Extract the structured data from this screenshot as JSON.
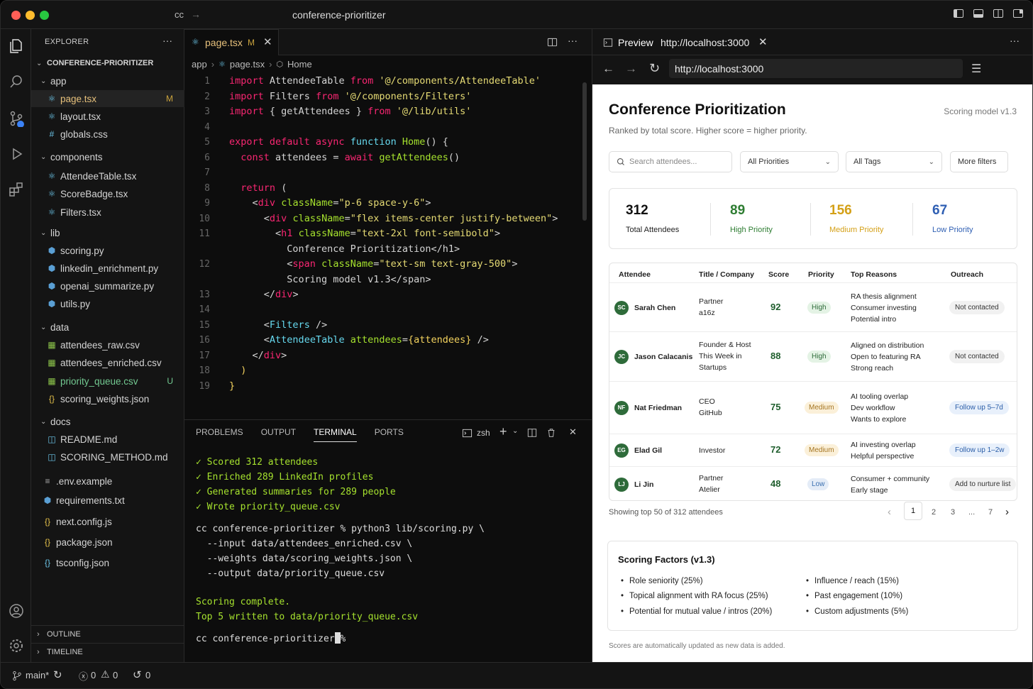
{
  "titlebar": {
    "left": "cc",
    "arrow": "→",
    "title": "conference-prioritizer"
  },
  "explorer": {
    "header": "EXPLORER",
    "more": "···",
    "root": "CONFERENCE-PRIORITIZER",
    "items": [
      {
        "label": "app",
        "kind": "folder"
      },
      {
        "label": "page.tsx",
        "kind": "react",
        "badge": "M"
      },
      {
        "label": "layout.tsx",
        "kind": "react"
      },
      {
        "label": "globals.css",
        "kind": "css"
      },
      {
        "label": "components",
        "kind": "folder"
      },
      {
        "label": "AttendeeTable.tsx",
        "kind": "react"
      },
      {
        "label": "ScoreBadge.tsx",
        "kind": "react"
      },
      {
        "label": "Filters.tsx",
        "kind": "react"
      },
      {
        "label": "lib",
        "kind": "folder"
      },
      {
        "label": "scoring.py",
        "kind": "python"
      },
      {
        "label": "linkedin_enrichment.py",
        "kind": "python"
      },
      {
        "label": "openai_summarize.py",
        "kind": "python"
      },
      {
        "label": "utils.py",
        "kind": "python"
      },
      {
        "label": "data",
        "kind": "folder"
      },
      {
        "label": "attendees_raw.csv",
        "kind": "csv"
      },
      {
        "label": "attendees_enriched.csv",
        "kind": "csv"
      },
      {
        "label": "priority_queue.csv",
        "kind": "csv",
        "badge": "U"
      },
      {
        "label": "scoring_weights.json",
        "kind": "json"
      },
      {
        "label": "docs",
        "kind": "folder"
      },
      {
        "label": "README.md",
        "kind": "md"
      },
      {
        "label": "SCORING_METHOD.md",
        "kind": "md"
      },
      {
        "label": ".env.example",
        "kind": "env"
      },
      {
        "label": "requirements.txt",
        "kind": "python"
      },
      {
        "label": "next.config.js",
        "kind": "js"
      },
      {
        "label": "package.json",
        "kind": "json"
      },
      {
        "label": "tsconfig.json",
        "kind": "ts"
      }
    ],
    "outline": "OUTLINE",
    "timeline": "TIMELINE"
  },
  "editor": {
    "tab_label": "page.tsx",
    "tab_badge": "M",
    "breadcrumb": [
      "app",
      "page.tsx",
      "Home"
    ],
    "line_numbers": [
      "1",
      "2",
      "3",
      "4",
      "5",
      "6",
      "7",
      "8",
      "9",
      "10",
      "11",
      "12",
      "13",
      "14",
      "15",
      "16",
      "17",
      "18",
      "19"
    ]
  },
  "terminal": {
    "tabs": [
      "PROBLEMS",
      "OUTPUT",
      "TERMINAL",
      "PORTS"
    ],
    "shell": "zsh",
    "lines": [
      "✓ Scored 312 attendees",
      "✓ Enriched 289 LinkedIn profiles",
      "✓ Generated summaries for 289 people",
      "✓ Wrote priority_queue.csv",
      "cc conference-prioritizer % python3 lib/scoring.py \\",
      "  --input data/attendees_enriched.csv \\",
      "  --weights data/scoring_weights.json \\",
      "  --output data/priority_queue.csv",
      "Scoring complete.",
      "Top 5 written to data/priority_queue.csv",
      "cc conference-prioritizer % "
    ]
  },
  "statusbar": {
    "branch": "main*",
    "errors": "0",
    "warnings": "0",
    "ports": "0"
  },
  "preview": {
    "tab_label": "Preview",
    "tab_url": "http://localhost:3000",
    "url": "http://localhost:3000"
  },
  "app": {
    "title": "Conference Prioritization",
    "version": "Scoring model v1.3",
    "subtitle": "Ranked by total score. Higher score = higher priority.",
    "search_placeholder": "Search attendees...",
    "priority_select": "All Priorities",
    "tags_select": "All Tags",
    "more_filters": "More filters",
    "stats": [
      {
        "value": "312",
        "label": "Total Attendees",
        "color": "#111111"
      },
      {
        "value": "89",
        "label": "High Priority",
        "color": "#2e7d32"
      },
      {
        "value": "156",
        "label": "Medium Priority",
        "color": "#d4a017"
      },
      {
        "value": "67",
        "label": "Low Priority",
        "color": "#2f5fb3"
      }
    ],
    "columns": [
      "Attendee",
      "Title / Company",
      "Score",
      "Priority",
      "Top Reasons",
      "Outreach"
    ],
    "rows": [
      {
        "initials": "SC",
        "name": "Sarah Chen",
        "title": [
          "Partner",
          "a16z"
        ],
        "score": "92",
        "priority": "High",
        "reasons": [
          "RA thesis alignment",
          "Consumer investing",
          "Potential intro"
        ],
        "outreach": "Not contacted"
      },
      {
        "initials": "JC",
        "name": "Jason Calacanis",
        "title": [
          "Founder & Host",
          "This Week in",
          "Startups"
        ],
        "score": "88",
        "priority": "High",
        "reasons": [
          "Aligned on distribution",
          "Open to featuring RA",
          "Strong reach"
        ],
        "outreach": "Not contacted"
      },
      {
        "initials": "NF",
        "name": "Nat Friedman",
        "title": [
          "CEO",
          "GitHub"
        ],
        "score": "75",
        "priority": "Medium",
        "reasons": [
          "AI tooling overlap",
          "Dev workflow",
          "Wants to explore"
        ],
        "outreach": "Follow up 5–7d"
      },
      {
        "initials": "EG",
        "name": "Elad Gil",
        "title": [
          "Investor"
        ],
        "score": "72",
        "priority": "Medium",
        "reasons": [
          "AI investing overlap",
          "Helpful perspective"
        ],
        "outreach": "Follow up 1–2w"
      },
      {
        "initials": "LJ",
        "name": "Li Jin",
        "title": [
          "Partner",
          "Atelier"
        ],
        "score": "48",
        "priority": "Low",
        "reasons": [
          "Consumer + community",
          "Early stage"
        ],
        "outreach": "Add to nurture list"
      }
    ],
    "showing": "Showing top 50 of 312 attendees",
    "pages": [
      "1",
      "2",
      "3",
      "...",
      "7"
    ],
    "factors_title": "Scoring Factors (v1.3)",
    "factors": [
      "Role seniority (25%)",
      "Topical alignment with RA focus (25%)",
      "Potential for mutual value / intros (20%)",
      "Influence / reach (15%)",
      "Past engagement (10%)",
      "Custom adjustments (5%)"
    ],
    "footer": "Scores are automatically updated as new data is added."
  }
}
